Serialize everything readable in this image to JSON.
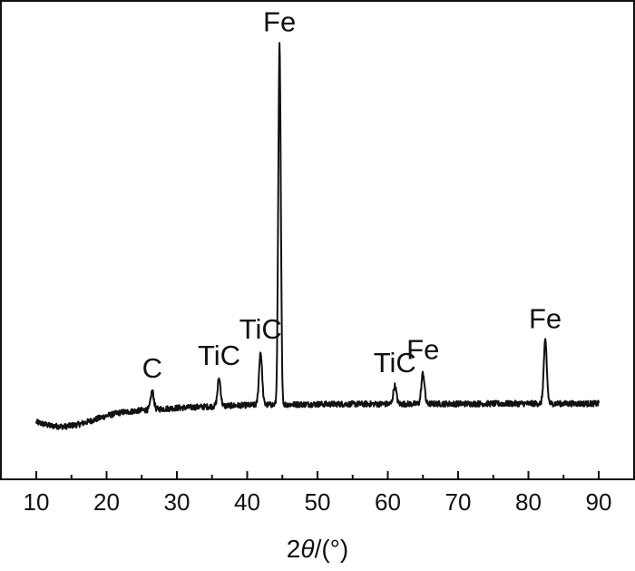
{
  "chart_data": {
    "type": "line",
    "xlabel_prefix": "2",
    "xlabel_symbol": "θ",
    "xlabel_suffix": "/(°)",
    "xlim": [
      5,
      93
    ],
    "ylim": [
      0,
      100
    ],
    "xticks": [
      "10",
      "20",
      "30",
      "40",
      "50",
      "60",
      "70",
      "80",
      "90"
    ],
    "yticks_shown": false,
    "grid": false,
    "line_color": "#111111",
    "baseline": [
      [
        10,
        9.5
      ],
      [
        12,
        7.5
      ],
      [
        14,
        7
      ],
      [
        16,
        8.2
      ],
      [
        18,
        10.5
      ],
      [
        20,
        13
      ],
      [
        22,
        14.8
      ],
      [
        24,
        15.6
      ],
      [
        26,
        16.4
      ],
      [
        28,
        16.8
      ],
      [
        30,
        17.3
      ],
      [
        34,
        18.0
      ],
      [
        38,
        18.6
      ],
      [
        42,
        19.0
      ],
      [
        46,
        19.2
      ],
      [
        50,
        19.4
      ],
      [
        60,
        19.5
      ],
      [
        70,
        19.6
      ],
      [
        80,
        19.7
      ],
      [
        90,
        19.7
      ]
    ],
    "peaks": [
      {
        "x": 26.5,
        "height": 10,
        "label": "C"
      },
      {
        "x": 36.0,
        "height": 15,
        "label": "TiC"
      },
      {
        "x": 41.9,
        "height": 29,
        "label": "TiC"
      },
      {
        "x": 44.6,
        "height": 198,
        "label": "Fe"
      },
      {
        "x": 61.0,
        "height": 10,
        "label": "TiC"
      },
      {
        "x": 65.0,
        "height": 17,
        "label": "Fe"
      },
      {
        "x": 82.4,
        "height": 34,
        "label": "Fe"
      }
    ]
  }
}
